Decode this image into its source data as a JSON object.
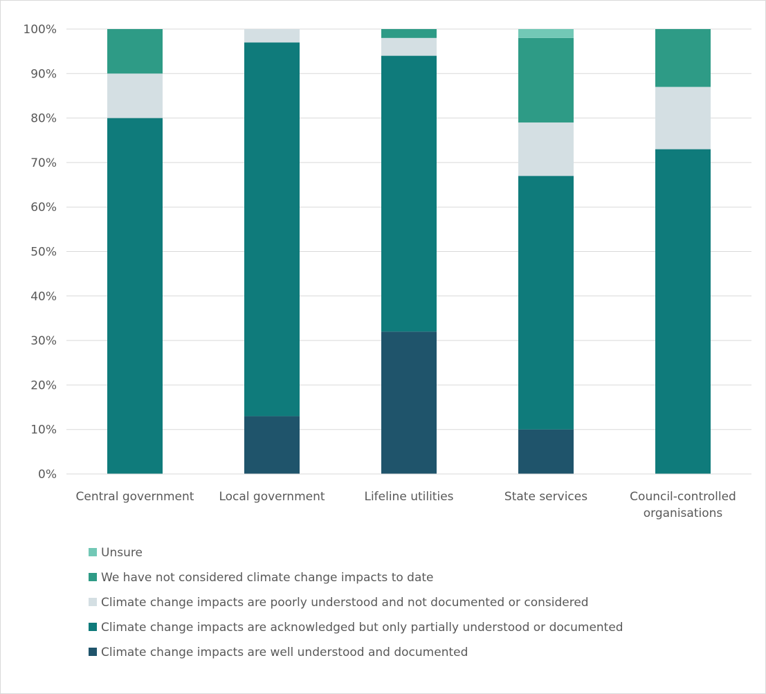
{
  "chart_data": {
    "type": "bar",
    "stacked": true,
    "percent": true,
    "categories": [
      [
        "Central government"
      ],
      [
        "Local government"
      ],
      [
        "Lifeline utilities"
      ],
      [
        "State services"
      ],
      [
        "Council-controlled",
        "organisations"
      ]
    ],
    "series": [
      {
        "name": "Climate change impacts are well understood and documented",
        "color": "#1f546b",
        "values": [
          0,
          13,
          32,
          10,
          0
        ]
      },
      {
        "name": "Climate change impacts are acknowledged but only partially understood or documented",
        "color": "#0f7b7b",
        "values": [
          80,
          84,
          62,
          57,
          73
        ]
      },
      {
        "name": "Climate change impacts are poorly understood and not documented or considered",
        "color": "#d4dfe3",
        "values": [
          10,
          3,
          4,
          12,
          14
        ]
      },
      {
        "name": "We have not considered climate change impacts to date",
        "color": "#2e9b86",
        "values": [
          10,
          0,
          2,
          19,
          13
        ]
      },
      {
        "name": "Unsure",
        "color": "#72c8b6",
        "values": [
          0,
          0,
          0,
          2,
          0
        ]
      }
    ],
    "legend_order": [
      4,
      3,
      2,
      1,
      0
    ],
    "ylim": [
      0,
      100
    ],
    "yticks": [
      "0%",
      "10%",
      "20%",
      "30%",
      "40%",
      "50%",
      "60%",
      "70%",
      "80%",
      "90%",
      "100%"
    ],
    "grid": true,
    "legend_position": "bottom-left",
    "title": "",
    "xlabel": "",
    "ylabel": ""
  }
}
